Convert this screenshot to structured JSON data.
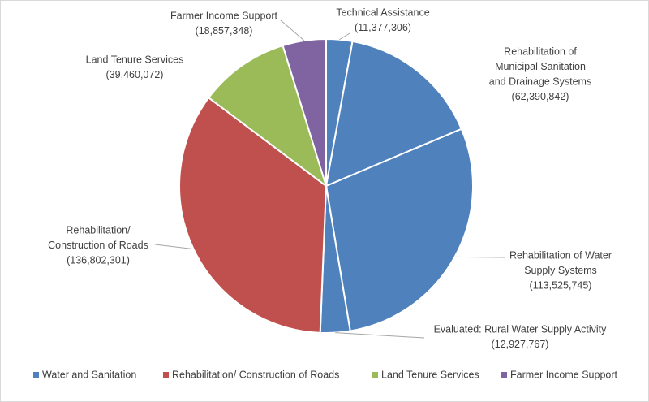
{
  "chart_data": {
    "type": "pie",
    "categories": [
      [
        "Technical Assistance"
      ],
      [
        "Rehabilitation of",
        "Municipal Sanitation",
        "and Drainage Systems"
      ],
      [
        "Rehabilitation of Water",
        "Supply Systems"
      ],
      [
        "Evaluated: Rural Water Supply Activity"
      ],
      [
        "Rehabilitation/",
        "Construction of Roads"
      ],
      [
        "Land Tenure Services"
      ],
      [
        "Farmer Income Support"
      ]
    ],
    "values": [
      11377306,
      62390842,
      113525745,
      12927767,
      136802301,
      39460072,
      18857348
    ],
    "value_labels": [
      "(11,377,306)",
      "(62,390,842)",
      "(113,525,745)",
      "(12,927,767)",
      "(136,802,301)",
      "(39,460,072)",
      "(18,857,348)"
    ],
    "colors": [
      "#4f81bd",
      "#4f81bd",
      "#4f81bd",
      "#4f81bd",
      "#c0504d",
      "#9bbb59",
      "#8064a2"
    ],
    "legend": [
      {
        "name": "Water and Sanitation",
        "color": "#4f81bd"
      },
      {
        "name": "Rehabilitation/ Construction of Roads",
        "color": "#c0504d"
      },
      {
        "name": "Land Tenure Services",
        "color": "#9bbb59"
      },
      {
        "name": "Farmer Income Support",
        "color": "#8064a2"
      }
    ],
    "legend_position": "bottom"
  }
}
